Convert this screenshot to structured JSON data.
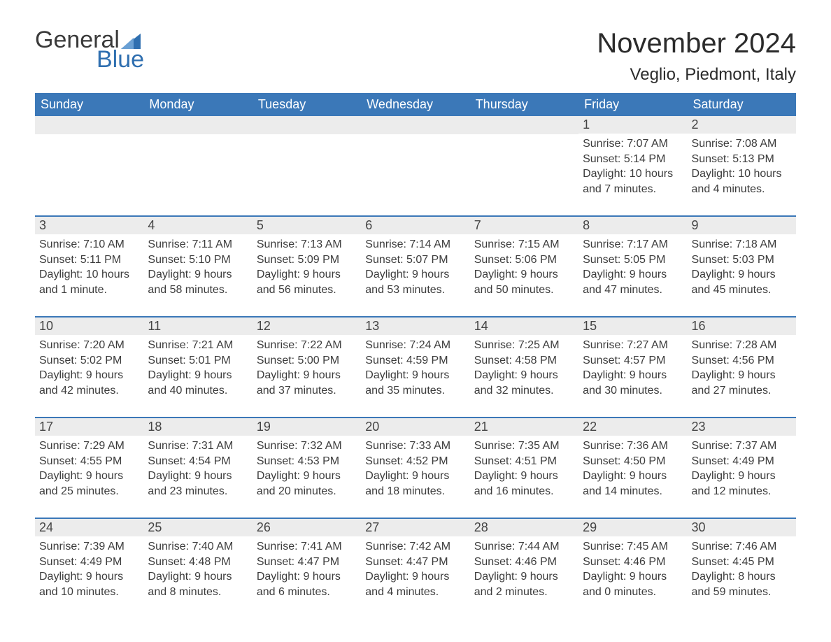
{
  "brand": {
    "top": "General",
    "bottom": "Blue",
    "accent": "#2f6fb0",
    "sail_color": "#2f6fb0"
  },
  "title": "November 2024",
  "location": "Veglio, Piedmont, Italy",
  "colors": {
    "header_bg": "#3b78b8",
    "header_text": "#ffffff",
    "daynum_bg": "#ececec",
    "week_divider": "#3b78b8",
    "body_text": "#3c3c3c",
    "background": "#ffffff"
  },
  "day_names": [
    "Sunday",
    "Monday",
    "Tuesday",
    "Wednesday",
    "Thursday",
    "Friday",
    "Saturday"
  ],
  "weeks": [
    [
      {
        "n": "",
        "sr": "",
        "ss": "",
        "dl": ""
      },
      {
        "n": "",
        "sr": "",
        "ss": "",
        "dl": ""
      },
      {
        "n": "",
        "sr": "",
        "ss": "",
        "dl": ""
      },
      {
        "n": "",
        "sr": "",
        "ss": "",
        "dl": ""
      },
      {
        "n": "",
        "sr": "",
        "ss": "",
        "dl": ""
      },
      {
        "n": "1",
        "sr": "Sunrise: 7:07 AM",
        "ss": "Sunset: 5:14 PM",
        "dl": "Daylight: 10 hours and 7 minutes."
      },
      {
        "n": "2",
        "sr": "Sunrise: 7:08 AM",
        "ss": "Sunset: 5:13 PM",
        "dl": "Daylight: 10 hours and 4 minutes."
      }
    ],
    [
      {
        "n": "3",
        "sr": "Sunrise: 7:10 AM",
        "ss": "Sunset: 5:11 PM",
        "dl": "Daylight: 10 hours and 1 minute."
      },
      {
        "n": "4",
        "sr": "Sunrise: 7:11 AM",
        "ss": "Sunset: 5:10 PM",
        "dl": "Daylight: 9 hours and 58 minutes."
      },
      {
        "n": "5",
        "sr": "Sunrise: 7:13 AM",
        "ss": "Sunset: 5:09 PM",
        "dl": "Daylight: 9 hours and 56 minutes."
      },
      {
        "n": "6",
        "sr": "Sunrise: 7:14 AM",
        "ss": "Sunset: 5:07 PM",
        "dl": "Daylight: 9 hours and 53 minutes."
      },
      {
        "n": "7",
        "sr": "Sunrise: 7:15 AM",
        "ss": "Sunset: 5:06 PM",
        "dl": "Daylight: 9 hours and 50 minutes."
      },
      {
        "n": "8",
        "sr": "Sunrise: 7:17 AM",
        "ss": "Sunset: 5:05 PM",
        "dl": "Daylight: 9 hours and 47 minutes."
      },
      {
        "n": "9",
        "sr": "Sunrise: 7:18 AM",
        "ss": "Sunset: 5:03 PM",
        "dl": "Daylight: 9 hours and 45 minutes."
      }
    ],
    [
      {
        "n": "10",
        "sr": "Sunrise: 7:20 AM",
        "ss": "Sunset: 5:02 PM",
        "dl": "Daylight: 9 hours and 42 minutes."
      },
      {
        "n": "11",
        "sr": "Sunrise: 7:21 AM",
        "ss": "Sunset: 5:01 PM",
        "dl": "Daylight: 9 hours and 40 minutes."
      },
      {
        "n": "12",
        "sr": "Sunrise: 7:22 AM",
        "ss": "Sunset: 5:00 PM",
        "dl": "Daylight: 9 hours and 37 minutes."
      },
      {
        "n": "13",
        "sr": "Sunrise: 7:24 AM",
        "ss": "Sunset: 4:59 PM",
        "dl": "Daylight: 9 hours and 35 minutes."
      },
      {
        "n": "14",
        "sr": "Sunrise: 7:25 AM",
        "ss": "Sunset: 4:58 PM",
        "dl": "Daylight: 9 hours and 32 minutes."
      },
      {
        "n": "15",
        "sr": "Sunrise: 7:27 AM",
        "ss": "Sunset: 4:57 PM",
        "dl": "Daylight: 9 hours and 30 minutes."
      },
      {
        "n": "16",
        "sr": "Sunrise: 7:28 AM",
        "ss": "Sunset: 4:56 PM",
        "dl": "Daylight: 9 hours and 27 minutes."
      }
    ],
    [
      {
        "n": "17",
        "sr": "Sunrise: 7:29 AM",
        "ss": "Sunset: 4:55 PM",
        "dl": "Daylight: 9 hours and 25 minutes."
      },
      {
        "n": "18",
        "sr": "Sunrise: 7:31 AM",
        "ss": "Sunset: 4:54 PM",
        "dl": "Daylight: 9 hours and 23 minutes."
      },
      {
        "n": "19",
        "sr": "Sunrise: 7:32 AM",
        "ss": "Sunset: 4:53 PM",
        "dl": "Daylight: 9 hours and 20 minutes."
      },
      {
        "n": "20",
        "sr": "Sunrise: 7:33 AM",
        "ss": "Sunset: 4:52 PM",
        "dl": "Daylight: 9 hours and 18 minutes."
      },
      {
        "n": "21",
        "sr": "Sunrise: 7:35 AM",
        "ss": "Sunset: 4:51 PM",
        "dl": "Daylight: 9 hours and 16 minutes."
      },
      {
        "n": "22",
        "sr": "Sunrise: 7:36 AM",
        "ss": "Sunset: 4:50 PM",
        "dl": "Daylight: 9 hours and 14 minutes."
      },
      {
        "n": "23",
        "sr": "Sunrise: 7:37 AM",
        "ss": "Sunset: 4:49 PM",
        "dl": "Daylight: 9 hours and 12 minutes."
      }
    ],
    [
      {
        "n": "24",
        "sr": "Sunrise: 7:39 AM",
        "ss": "Sunset: 4:49 PM",
        "dl": "Daylight: 9 hours and 10 minutes."
      },
      {
        "n": "25",
        "sr": "Sunrise: 7:40 AM",
        "ss": "Sunset: 4:48 PM",
        "dl": "Daylight: 9 hours and 8 minutes."
      },
      {
        "n": "26",
        "sr": "Sunrise: 7:41 AM",
        "ss": "Sunset: 4:47 PM",
        "dl": "Daylight: 9 hours and 6 minutes."
      },
      {
        "n": "27",
        "sr": "Sunrise: 7:42 AM",
        "ss": "Sunset: 4:47 PM",
        "dl": "Daylight: 9 hours and 4 minutes."
      },
      {
        "n": "28",
        "sr": "Sunrise: 7:44 AM",
        "ss": "Sunset: 4:46 PM",
        "dl": "Daylight: 9 hours and 2 minutes."
      },
      {
        "n": "29",
        "sr": "Sunrise: 7:45 AM",
        "ss": "Sunset: 4:46 PM",
        "dl": "Daylight: 9 hours and 0 minutes."
      },
      {
        "n": "30",
        "sr": "Sunrise: 7:46 AM",
        "ss": "Sunset: 4:45 PM",
        "dl": "Daylight: 8 hours and 59 minutes."
      }
    ]
  ]
}
